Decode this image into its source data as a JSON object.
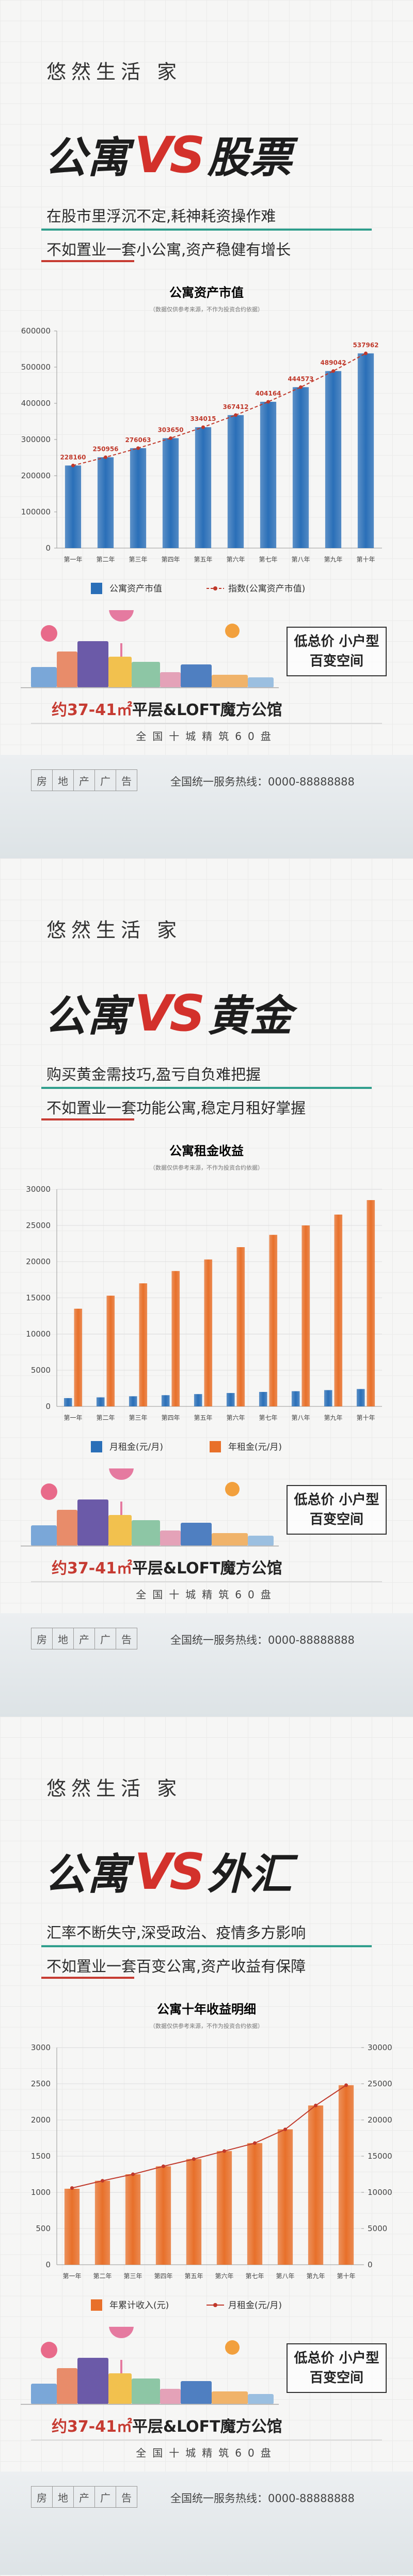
{
  "posters": [
    {
      "brand": "悠然生活 家",
      "headline_left": "公寓",
      "vs": "VS",
      "headline_right": "股票",
      "lines": [
        "在股市里浮沉不定,耗神耗资操作难",
        "不如置业一套小公寓,资产稳健有增长"
      ],
      "tagline_lines": [
        "低总价 小户型",
        "百变空间"
      ],
      "product_size": "约37-41㎡",
      "product_name": "平层&LOFT魔方公馆",
      "network": "全国十城精筑60盘",
      "ad_label": [
        "房",
        "地",
        "产",
        "广",
        "告"
      ],
      "hotline": "全国统一服务热线：0000-88888888"
    },
    {
      "brand": "悠然生活 家",
      "headline_left": "公寓",
      "vs": "VS",
      "headline_right": "黄金",
      "lines": [
        "购买黄金需技巧,盈亏自负难把握",
        "不如置业一套功能公寓,稳定月租好掌握"
      ],
      "tagline_lines": [
        "低总价 小户型",
        "百变空间"
      ],
      "product_size": "约37-41㎡",
      "product_name": "平层&LOFT魔方公馆",
      "network": "全国十城精筑60盘",
      "ad_label": [
        "房",
        "地",
        "产",
        "广",
        "告"
      ],
      "hotline": "全国统一服务热线：0000-88888888"
    },
    {
      "brand": "悠然生活 家",
      "headline_left": "公寓",
      "vs": "VS",
      "headline_right": "外汇",
      "lines": [
        "汇率不断失守,深受政治、疫情多方影响",
        "不如置业一套百变公寓,资产收益有保障"
      ],
      "tagline_lines": [
        "低总价 小户型",
        "百变空间"
      ],
      "product_size": "约37-41㎡",
      "product_name": "平层&LOFT魔方公馆",
      "network": "全国十城精筑60盘",
      "ad_label": [
        "房",
        "地",
        "产",
        "广",
        "告"
      ],
      "hotline": "全国统一服务热线：0000-88888888"
    }
  ],
  "chart_data": [
    {
      "type": "bar",
      "title": "公寓资产市值",
      "subtitle": "（数据仅供参考来源，不作为投资合约依据）",
      "categories": [
        "第一年",
        "第二年",
        "第三年",
        "第四年",
        "第五年",
        "第六年",
        "第七年",
        "第八年",
        "第九年",
        "第十年"
      ],
      "series": [
        {
          "name": "公寓资产市值",
          "color": "#2a6fb8",
          "values": [
            228160,
            250956,
            276063,
            303650,
            334015,
            367412,
            404164,
            444573,
            489042,
            537962
          ]
        },
        {
          "name": "指数(公寓资产市值)",
          "type": "line",
          "color": "#c0392b",
          "dashed": true,
          "labels": true,
          "values": [
            228160,
            250956,
            276063,
            303650,
            334015,
            367412,
            404164,
            444573,
            489042,
            537962
          ]
        }
      ],
      "ylim": [
        0,
        600000
      ],
      "yticks": [
        0,
        100000,
        200000,
        300000,
        400000,
        500000,
        600000
      ],
      "grid": false
    },
    {
      "type": "bar",
      "title": "公寓租金收益",
      "subtitle": "（数据仅供参考来源，不作为投资合约依据）",
      "categories": [
        "第一年",
        "第二年",
        "第三年",
        "第四年",
        "第五年",
        "第六年",
        "第七年",
        "第八年",
        "第九年",
        "第十年"
      ],
      "series": [
        {
          "name": "月租金(元/月)",
          "color": "#2a6fb8",
          "values": [
            1150,
            1250,
            1400,
            1550,
            1700,
            1850,
            2000,
            2100,
            2250,
            2400
          ]
        },
        {
          "name": "年租金(元/月)",
          "color": "#e8702a",
          "values": [
            13500,
            15300,
            17000,
            18700,
            20300,
            22000,
            23700,
            25000,
            26500,
            28500
          ]
        }
      ],
      "ylim": [
        0,
        30000
      ],
      "yticks": [
        0,
        5000,
        10000,
        15000,
        20000,
        25000,
        30000
      ],
      "grid": true
    },
    {
      "type": "bar",
      "title": "公寓十年收益明细",
      "subtitle": "（数据仅供参考来源，不作为投资合约依据）",
      "categories": [
        "第一年",
        "第二年",
        "第三年",
        "第四年",
        "第五年",
        "第六年",
        "第七年",
        "第八年",
        "第九年",
        "第十年"
      ],
      "series": [
        {
          "name": "年累计收入(元)",
          "color": "#e8702a",
          "axis": "y2",
          "values": [
            10500,
            11600,
            12500,
            13600,
            14600,
            15700,
            16800,
            18700,
            22000,
            24800
          ]
        },
        {
          "name": "月租金(元/月)",
          "type": "line",
          "color": "#c0392b",
          "values": [
            1060,
            1160,
            1250,
            1360,
            1460,
            1570,
            1680,
            1870,
            2200,
            2480
          ]
        }
      ],
      "ylim": [
        0,
        3000
      ],
      "yticks": [
        0,
        500,
        1000,
        1500,
        2000,
        2500,
        3000
      ],
      "y2lim": [
        0,
        30000
      ],
      "y2ticks": [
        0,
        5000,
        10000,
        15000,
        20000,
        25000,
        30000
      ],
      "grid": true
    }
  ]
}
